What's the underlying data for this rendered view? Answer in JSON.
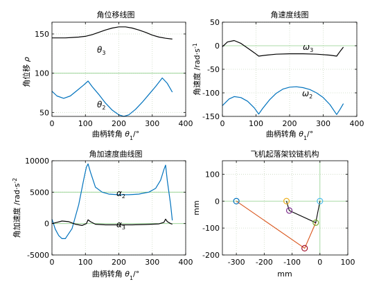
{
  "chart_data": [
    {
      "type": "line",
      "title": "角位移线图",
      "xlabel": "曲柄转角 θ1/°",
      "ylabel": "角位移 ρ",
      "xlim": [
        0,
        400
      ],
      "ylim": [
        45,
        165
      ],
      "xticks": [
        0,
        100,
        200,
        300,
        400
      ],
      "yticks": [
        50,
        100,
        150
      ],
      "grid": true,
      "series": [
        {
          "name": "θ3",
          "color": "#000000",
          "x": [
            0,
            20,
            40,
            60,
            80,
            100,
            120,
            140,
            160,
            180,
            200,
            220,
            240,
            260,
            280,
            300,
            320,
            340,
            360
          ],
          "y": [
            145,
            145,
            145,
            145.5,
            146,
            147,
            149,
            152,
            155,
            157.5,
            159,
            159,
            157.5,
            155,
            152,
            148.5,
            146,
            144.5,
            143.5
          ]
        },
        {
          "name": "θ2",
          "color": "#0072BD",
          "x": [
            0,
            15,
            35,
            55,
            75,
            95,
            108,
            120,
            140,
            160,
            180,
            200,
            215,
            230,
            250,
            270,
            290,
            310,
            330,
            345,
            360
          ],
          "y": [
            77,
            71,
            68,
            71,
            78,
            85,
            90,
            83,
            73,
            62,
            53,
            47,
            45,
            47,
            54,
            63,
            73,
            83,
            94,
            87,
            76
          ]
        }
      ]
    },
    {
      "type": "line",
      "title": "角速度线图",
      "xlabel": "曲柄转角 θ1/°",
      "ylabel": "角速度 /rad·s-1",
      "xlim": [
        0,
        400
      ],
      "ylim": [
        -150,
        50
      ],
      "xticks": [
        0,
        100,
        200,
        300,
        400
      ],
      "yticks": [
        -150,
        -100,
        -50,
        0,
        50
      ],
      "grid": true,
      "series": [
        {
          "name": "ω3",
          "color": "#000000",
          "x": [
            0,
            15,
            35,
            55,
            75,
            95,
            108,
            130,
            160,
            200,
            240,
            280,
            320,
            340,
            350,
            360
          ],
          "y": [
            -2,
            8,
            11,
            5,
            -5,
            -15,
            -22,
            -20,
            -18,
            -17,
            -17,
            -18,
            -20,
            -22,
            -12,
            -3
          ]
        },
        {
          "name": "ω2",
          "color": "#0072BD",
          "x": [
            0,
            10,
            20,
            35,
            55,
            75,
            95,
            108,
            120,
            140,
            160,
            180,
            200,
            220,
            240,
            260,
            280,
            300,
            320,
            340,
            350,
            360
          ],
          "y": [
            -127,
            -120,
            -113,
            -108,
            -110,
            -118,
            -132,
            -145,
            -133,
            -115,
            -101,
            -92,
            -88,
            -87,
            -89,
            -93,
            -100,
            -110,
            -125,
            -146,
            -135,
            -123
          ]
        }
      ]
    },
    {
      "type": "line",
      "title": "角加速度曲线图",
      "xlabel": "曲柄转角 θ1/°",
      "ylabel": "角加速度 /rad·s-2",
      "xlim": [
        0,
        400
      ],
      "ylim": [
        -5000,
        10000
      ],
      "xticks": [
        0,
        100,
        200,
        300,
        400
      ],
      "yticks": [
        -5000,
        0,
        5000,
        10000
      ],
      "grid": true,
      "series": [
        {
          "name": "α2",
          "color": "#0072BD",
          "x": [
            0,
            10,
            20,
            30,
            40,
            60,
            80,
            95,
            103,
            108,
            115,
            130,
            150,
            170,
            200,
            230,
            260,
            290,
            310,
            325,
            335,
            340,
            345,
            355,
            360
          ],
          "y": [
            700,
            -900,
            -1900,
            -2400,
            -2400,
            -800,
            3000,
            7000,
            9000,
            9500,
            8200,
            5800,
            5000,
            4700,
            4600,
            4600,
            4700,
            5000,
            5600,
            6900,
            8600,
            9300,
            6800,
            3000,
            500
          ]
        },
        {
          "name": "α3",
          "color": "#000000",
          "x": [
            0,
            15,
            30,
            50,
            70,
            90,
            103,
            108,
            115,
            130,
            160,
            200,
            240,
            280,
            320,
            335,
            340,
            345,
            355,
            360
          ],
          "y": [
            0,
            200,
            400,
            300,
            -100,
            -300,
            0,
            600,
            300,
            -100,
            -200,
            -200,
            -200,
            -150,
            -50,
            200,
            700,
            300,
            0,
            -100
          ]
        }
      ]
    },
    {
      "type": "scatter",
      "title": "飞机起落架铰链机构",
      "xlabel": "mm",
      "ylabel": "mm",
      "xlim": [
        -350,
        100
      ],
      "ylim": [
        -200,
        150
      ],
      "xticks": [
        -300,
        -200,
        -100,
        0,
        100
      ],
      "yticks": [
        -200,
        -100,
        0,
        100
      ],
      "grid": true,
      "links": [
        {
          "color": "#D95319",
          "points": [
            [
              -300,
              0
            ],
            [
              -55,
              -175
            ],
            [
              -15,
              -80
            ]
          ]
        },
        {
          "color": "#000000",
          "points": [
            [
              -110,
              -35
            ],
            [
              -15,
              -80
            ],
            [
              0,
              0
            ]
          ]
        },
        {
          "color": "#000000",
          "points": [
            [
              -120,
              0
            ],
            [
              -110,
              -35
            ]
          ]
        }
      ],
      "joints": [
        {
          "x": -300,
          "y": 0,
          "color": "#0072BD"
        },
        {
          "x": -120,
          "y": 0,
          "color": "#EDB120"
        },
        {
          "x": -110,
          "y": -35,
          "color": "#7E2F8E"
        },
        {
          "x": -15,
          "y": -80,
          "color": "#77AC30"
        },
        {
          "x": 0,
          "y": 0,
          "color": "#4DBEEE"
        },
        {
          "x": -55,
          "y": -175,
          "color": "#A2142F"
        }
      ]
    }
  ],
  "annotations": {
    "a1": {
      "base": "θ",
      "sub": "3"
    },
    "a2": {
      "base": "θ",
      "sub": "2"
    },
    "b1": {
      "base": "ω",
      "sub": "3"
    },
    "b2": {
      "base": "ω",
      "sub": "2"
    },
    "c1": {
      "base": "α",
      "sub": "2"
    },
    "c2": {
      "base": "α",
      "sub": "3"
    }
  },
  "colors": {
    "axis": "#000000",
    "grid": "#c9d7c0",
    "gridZero": "#8fcf8a"
  }
}
